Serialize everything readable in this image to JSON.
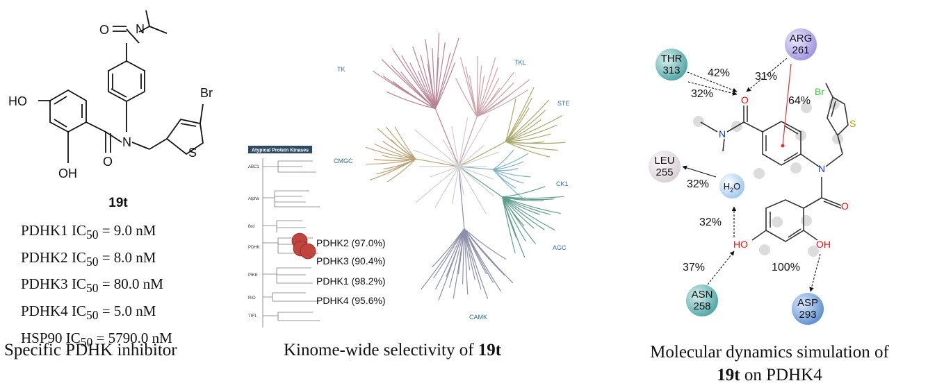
{
  "panel1": {
    "atoms": {
      "o1": "O",
      "n1": "N",
      "br": "Br",
      "ho": "HO",
      "n2": "N",
      "s": "S",
      "o2": "O",
      "oh": "OH"
    },
    "compound_label": "19t",
    "ic50": [
      {
        "target": "PDHK1",
        "value": "9.0 nM"
      },
      {
        "target": "PDHK2",
        "value": "8.0 nM"
      },
      {
        "target": "PDHK3",
        "value": "80.0 nM"
      },
      {
        "target": "PDHK4",
        "value": "5.0 nM"
      },
      {
        "target": "HSP90",
        "value": "5790.0 nM"
      }
    ],
    "ic_prefix": "IC",
    "ic_sub": "50",
    "caption": "Specific PDHK inhibitor"
  },
  "panel2": {
    "groups": [
      "TK",
      "TKL",
      "STE",
      "CK1",
      "AGC",
      "CAMK",
      "CMGC"
    ],
    "atypical_title": "Atypical Protein Kinases",
    "atypical_families": [
      "ABC1",
      "Alpha",
      "Brd",
      "PDHK",
      "PIKK",
      "RIO",
      "TIF1"
    ],
    "pdhk_hits": [
      {
        "name": "PDHK2",
        "pct": "(97.0%)"
      },
      {
        "name": "PDHK3",
        "pct": "(90.4%)"
      },
      {
        "name": "PDHK1",
        "pct": "(98.2%)"
      },
      {
        "name": "PDHK4",
        "pct": "(95.6%)"
      }
    ],
    "colors": {
      "hit": "#c0453f",
      "TK": "#b88494",
      "TKL": "#c9a2a8",
      "STE": "#a9a86a",
      "CK1": "#7fb2c4",
      "AGC": "#5f9e8a",
      "CAMK": "#8d8eaa",
      "CMGC": "#b9a375"
    },
    "caption_prefix": "Kinome-wide selectivity of ",
    "caption_bold": "19t"
  },
  "panel3": {
    "residues": [
      {
        "name": "THR",
        "num": "313",
        "color": "#4fa6a6"
      },
      {
        "name": "ARG",
        "num": "261",
        "color": "#9f93e0"
      },
      {
        "name": "LEU",
        "num": "255",
        "color": "#d9cfd4"
      },
      {
        "name": "ASN",
        "num": "258",
        "color": "#4fa6a6"
      },
      {
        "name": "ASP",
        "num": "293",
        "color": "#5d8fd0"
      }
    ],
    "water": {
      "label": "H",
      "sub": "2",
      "tail": "O"
    },
    "percents": [
      "42%",
      "31%",
      "32%",
      "64%",
      "32%",
      "32%",
      "37%",
      "100%"
    ],
    "atoms": {
      "br": "Br",
      "s": "S",
      "o1": "O",
      "n1": "N",
      "n2": "N",
      "o2": "O",
      "ho": "HO",
      "oh": "OH"
    },
    "caption_line1": "Molecular dynamics simulation of",
    "caption_bold": "19t",
    "caption_tail": " on PDHK4"
  }
}
